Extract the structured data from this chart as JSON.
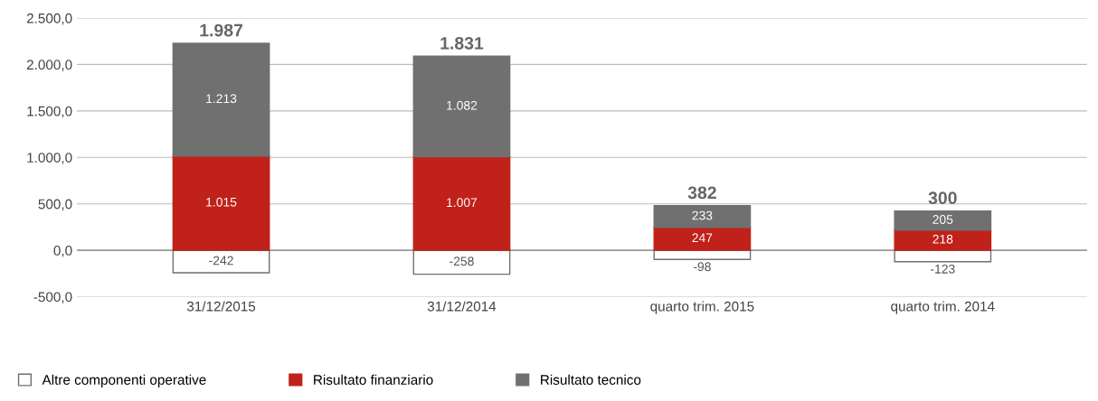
{
  "chart_data": {
    "type": "bar",
    "stacked": true,
    "categories": [
      "31/12/2015",
      "31/12/2014",
      "quarto trim. 2015",
      "quarto trim. 2014"
    ],
    "series": [
      {
        "name": "Altre componenti operative",
        "color": "#ffffff",
        "values": [
          -242,
          -258,
          -98,
          -123
        ],
        "value_labels": [
          "-242",
          "-258",
          "-98",
          "-123"
        ]
      },
      {
        "name": "Risultato finanziario",
        "color": "#c0211a",
        "values": [
          1015,
          1007,
          247,
          218
        ],
        "value_labels": [
          "1.015",
          "1.007",
          "247",
          "218"
        ]
      },
      {
        "name": "Risultato tecnico",
        "color": "#707070",
        "values": [
          1213,
          1082,
          233,
          205
        ],
        "value_labels": [
          "1.213",
          "1.082",
          "233",
          "205"
        ]
      }
    ],
    "totals": [
      "1.987",
      "1.831",
      "382",
      "300"
    ],
    "ylim": [
      -500,
      2500
    ],
    "yticks": [
      {
        "value": -500,
        "label": "-500,0"
      },
      {
        "value": 0,
        "label": "0,0"
      },
      {
        "value": 500,
        "label": "500,0"
      },
      {
        "value": 1000,
        "label": "1.000,0"
      },
      {
        "value": 1500,
        "label": "1.500,0"
      },
      {
        "value": 2000,
        "label": "2.000,0"
      },
      {
        "value": 2500,
        "label": "2.500,0"
      }
    ],
    "grid": "y",
    "legend": "bottom left"
  }
}
